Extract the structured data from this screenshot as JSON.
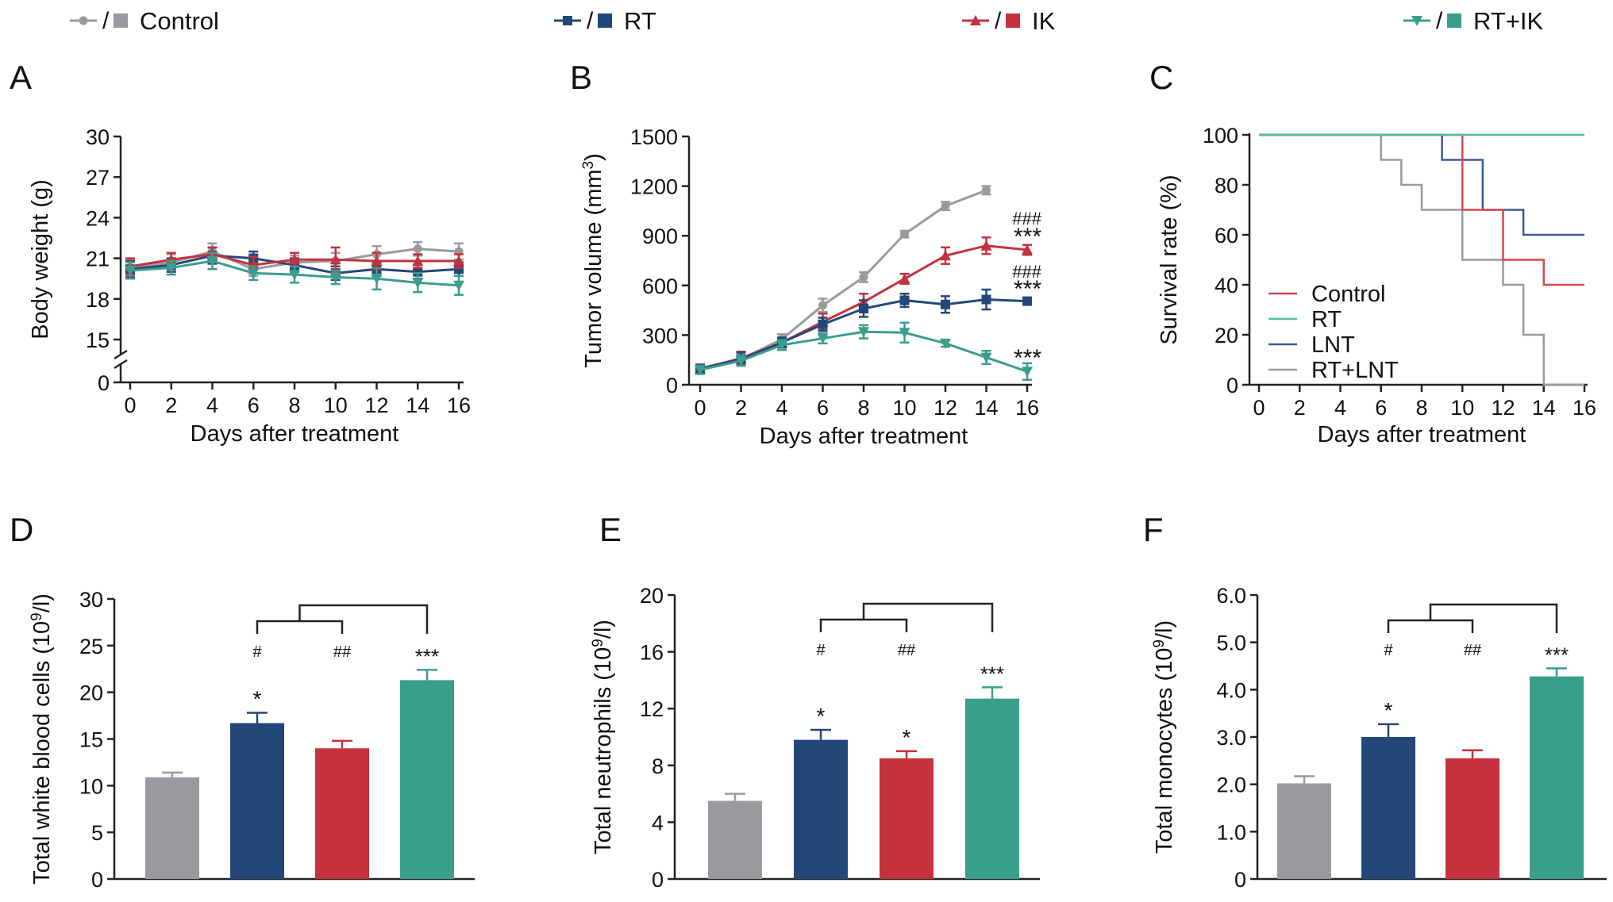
{
  "colors": {
    "control": "#9a9a9e",
    "rt": "#24477a",
    "ik": "#c4323d",
    "rtik": "#3a9e8c"
  },
  "legend": [
    {
      "key": "control",
      "marker_sep": "/",
      "label": "Control"
    },
    {
      "key": "rt",
      "marker_sep": "/",
      "label": "RT"
    },
    {
      "key": "ik",
      "marker_sep": "/",
      "label": "IK"
    },
    {
      "key": "rtik",
      "marker_sep": "/",
      "label": "RT+IK"
    }
  ],
  "chart_data": [
    {
      "panel": "A",
      "type": "line",
      "xlabel": "Days after treatment",
      "ylabel": "Body weight (g)",
      "x": [
        0,
        2,
        4,
        6,
        8,
        10,
        12,
        14,
        16
      ],
      "xticks": [
        "0",
        "2",
        "4",
        "6",
        "8",
        "10",
        "12",
        "14",
        "16"
      ],
      "yticks": [
        "0",
        "15",
        "18",
        "21",
        "24",
        "27",
        "30"
      ],
      "ylim": [
        15,
        30
      ],
      "axis_break": true,
      "series": [
        {
          "key": "control",
          "name": "Control",
          "values": [
            20.3,
            20.7,
            21.5,
            20.2,
            20.7,
            20.8,
            21.3,
            21.7,
            21.5
          ],
          "err": [
            0.6,
            0.6,
            0.6,
            0.5,
            0.5,
            0.6,
            0.6,
            0.5,
            0.6
          ]
        },
        {
          "key": "rt",
          "name": "RT",
          "values": [
            20.2,
            20.5,
            21.2,
            21.0,
            20.5,
            19.9,
            20.2,
            20.0,
            20.2
          ],
          "err": [
            0.6,
            0.5,
            0.6,
            0.5,
            0.5,
            0.5,
            0.5,
            0.5,
            0.5
          ]
        },
        {
          "key": "ik",
          "name": "IK",
          "values": [
            20.4,
            20.9,
            21.3,
            20.5,
            20.9,
            20.9,
            20.8,
            20.8,
            20.8
          ],
          "err": [
            0.6,
            0.5,
            0.5,
            0.6,
            0.5,
            0.9,
            0.6,
            0.5,
            0.5
          ]
        },
        {
          "key": "rtik",
          "name": "RT+IK",
          "values": [
            20.1,
            20.3,
            20.8,
            19.9,
            19.8,
            19.6,
            19.5,
            19.2,
            19.0
          ],
          "err": [
            0.6,
            0.5,
            0.6,
            0.5,
            0.6,
            0.5,
            0.8,
            0.7,
            0.7
          ]
        }
      ],
      "annotations": []
    },
    {
      "panel": "B",
      "type": "line",
      "xlabel": "Days after treatment",
      "ylabel": "Tumor volume (mm",
      "ylabel_sup": "3",
      "ylabel_end": ")",
      "x": [
        0,
        2,
        4,
        6,
        8,
        10,
        12,
        14,
        16
      ],
      "xticks": [
        "0",
        "2",
        "4",
        "6",
        "8",
        "10",
        "12",
        "14",
        "16"
      ],
      "yticks": [
        "0",
        "300",
        "600",
        "900",
        "1200",
        "1500"
      ],
      "ylim": [
        0,
        1500
      ],
      "series": [
        {
          "key": "control",
          "name": "Control",
          "values": [
            100,
            155,
            275,
            480,
            650,
            910,
            1080,
            1175,
            null
          ],
          "err": [
            25,
            30,
            30,
            40,
            30,
            20,
            25,
            25,
            null
          ]
        },
        {
          "key": "ik",
          "name": "IK",
          "values": [
            95,
            160,
            255,
            380,
            500,
            640,
            780,
            840,
            815
          ],
          "err": [
            25,
            40,
            30,
            50,
            50,
            30,
            50,
            50,
            30
          ]
        },
        {
          "key": "rt",
          "name": "RT",
          "values": [
            95,
            155,
            255,
            365,
            460,
            510,
            485,
            515,
            505
          ],
          "err": [
            25,
            40,
            30,
            40,
            50,
            40,
            50,
            60,
            20
          ]
        },
        {
          "key": "rtik",
          "name": "RT+IK",
          "values": [
            90,
            145,
            240,
            280,
            320,
            315,
            250,
            165,
            80
          ],
          "err": [
            25,
            30,
            30,
            30,
            40,
            60,
            20,
            40,
            50
          ]
        }
      ],
      "annotations": [
        {
          "text": "###",
          "at": "IK"
        },
        {
          "text": "***",
          "at": "IK"
        },
        {
          "text": "###",
          "at": "RT"
        },
        {
          "text": "***",
          "at": "RT"
        },
        {
          "text": "***",
          "at": "RT+IK"
        }
      ]
    },
    {
      "panel": "C",
      "type": "line",
      "step": true,
      "xlabel": "Days after treatment",
      "ylabel": "Survival rate (%)",
      "xticks": [
        "0",
        "2",
        "4",
        "6",
        "8",
        "10",
        "12",
        "14",
        "16"
      ],
      "yticks": [
        "0",
        "20",
        "40",
        "60",
        "80",
        "100"
      ],
      "xlim": [
        0,
        16
      ],
      "ylim": [
        0,
        100
      ],
      "series": [
        {
          "name": "Control",
          "color": "#d9474f",
          "x": [
            0,
            10,
            11,
            12,
            14,
            16
          ],
          "values": [
            100,
            70,
            70,
            50,
            40,
            40
          ]
        },
        {
          "name": "RT",
          "color": "#4fbf9f",
          "x": [
            0,
            16
          ],
          "values": [
            100,
            100
          ]
        },
        {
          "name": "LNT",
          "color": "#3b5998",
          "x": [
            0,
            9,
            11,
            13,
            16
          ],
          "values": [
            100,
            90,
            70,
            60,
            60
          ]
        },
        {
          "name": "RT+LNT",
          "color": "#9a9a9a",
          "x": [
            0,
            6,
            7,
            8,
            10,
            12,
            13,
            14,
            16
          ],
          "values": [
            100,
            90,
            80,
            70,
            50,
            40,
            20,
            0,
            0
          ]
        }
      ],
      "legend_position": "lower-left"
    },
    {
      "panel": "D",
      "type": "bar",
      "ylabel": "Total white blood cells (10",
      "ylabel_sup": "9",
      "ylabel_end": "/l)",
      "categories": [
        "Control",
        "RT",
        "IK",
        "RT+IK"
      ],
      "values": [
        10.9,
        16.7,
        14.0,
        21.3
      ],
      "err": [
        0.5,
        1.1,
        0.8,
        1.1
      ],
      "yticks": [
        "0",
        "5",
        "10",
        "15",
        "20",
        "25",
        "30"
      ],
      "ylim": [
        0,
        30
      ],
      "star_labels": [
        "",
        "*",
        "",
        "***"
      ],
      "hash_labels": [
        "",
        "#",
        "##",
        ""
      ]
    },
    {
      "panel": "E",
      "type": "bar",
      "ylabel": "Total neutrophils (10",
      "ylabel_sup": "9",
      "ylabel_end": "/l)",
      "categories": [
        "Control",
        "RT",
        "IK",
        "RT+IK"
      ],
      "values": [
        5.5,
        9.8,
        8.5,
        12.7
      ],
      "err": [
        0.5,
        0.7,
        0.5,
        0.8
      ],
      "yticks": [
        "0",
        "4",
        "8",
        "12",
        "16",
        "20"
      ],
      "ylim": [
        0,
        20
      ],
      "star_labels": [
        "",
        "*",
        "*",
        "***"
      ],
      "hash_labels": [
        "",
        "#",
        "##",
        ""
      ]
    },
    {
      "panel": "F",
      "type": "bar",
      "ylabel": "Total monocytes (10",
      "ylabel_sup": "9",
      "ylabel_end": "/l)",
      "categories": [
        "Control",
        "RT",
        "IK",
        "RT+IK"
      ],
      "values": [
        2.02,
        3.0,
        2.55,
        4.28
      ],
      "err": [
        0.15,
        0.27,
        0.17,
        0.17
      ],
      "yticks": [
        "0",
        "1.0",
        "2.0",
        "3.0",
        "4.0",
        "5.0",
        "6.0"
      ],
      "ylim": [
        0,
        6
      ],
      "star_labels": [
        "",
        "*",
        "",
        "***"
      ],
      "hash_labels": [
        "",
        "#",
        "##",
        ""
      ]
    }
  ]
}
